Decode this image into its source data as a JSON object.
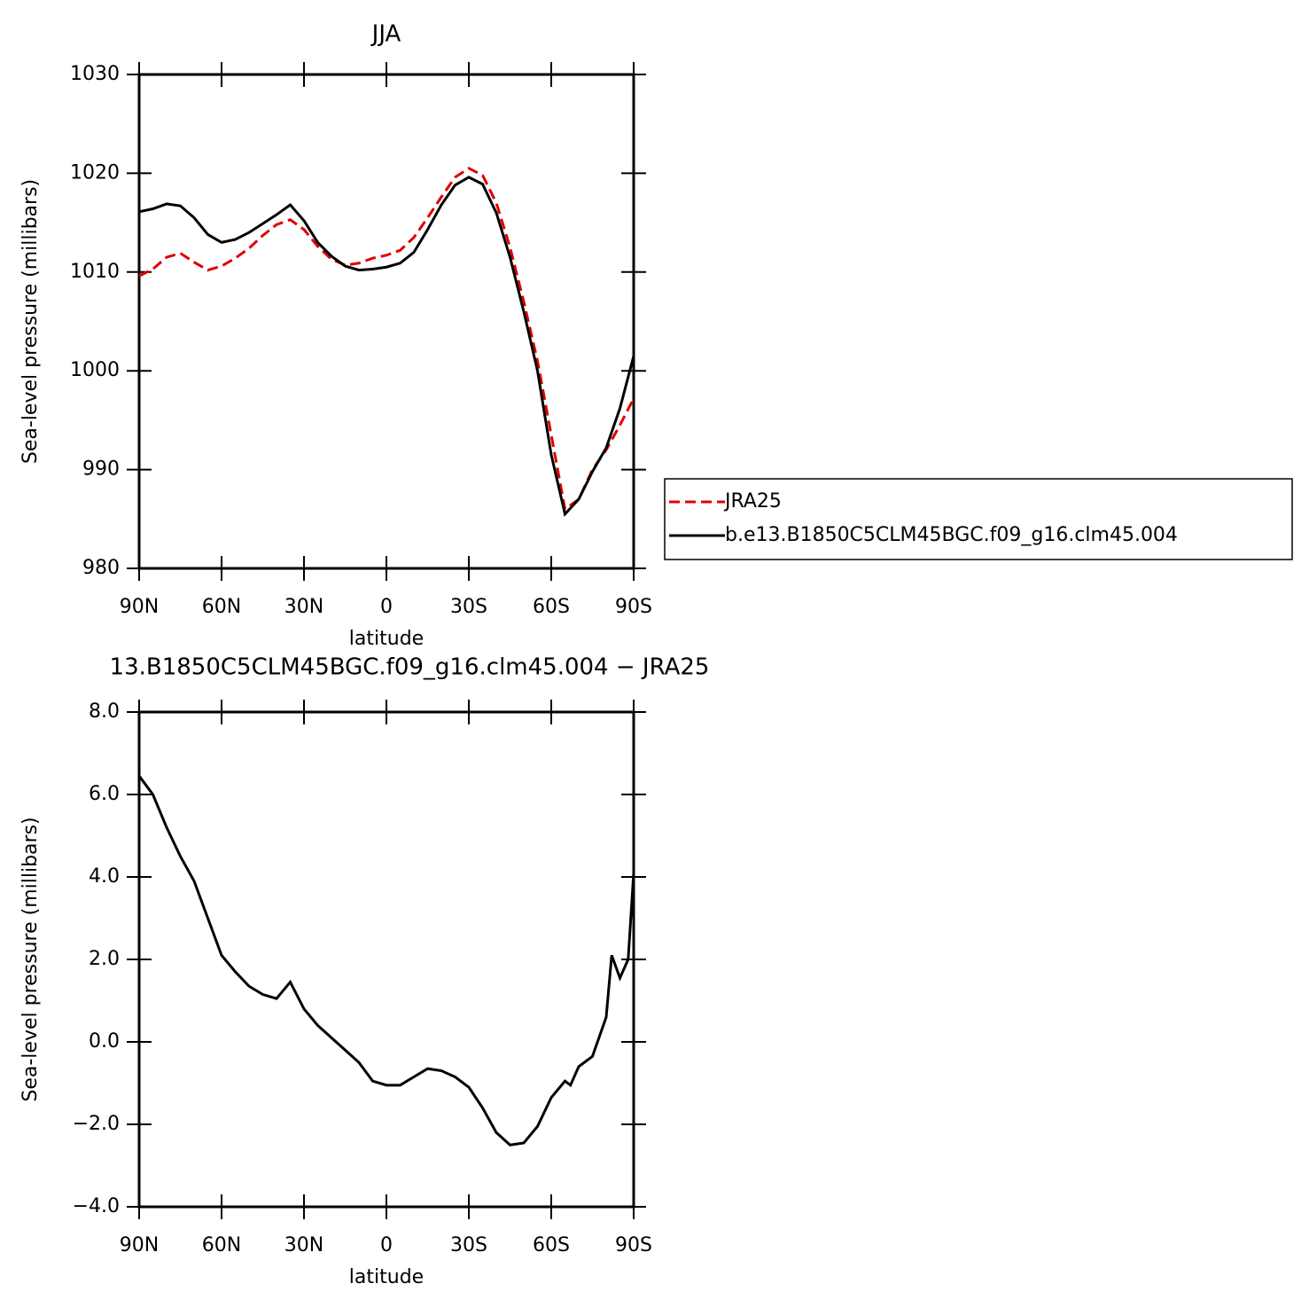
{
  "chart_data": [
    {
      "type": "line",
      "title": "JJA",
      "ylabel": "Sea-level pressure (millibars)",
      "xlabel": "latitude",
      "x": [
        90,
        85,
        80,
        75,
        70,
        65,
        60,
        55,
        50,
        45,
        40,
        35,
        30,
        25,
        20,
        15,
        10,
        5,
        0,
        -5,
        -10,
        -15,
        -20,
        -25,
        -30,
        -35,
        -40,
        -45,
        -50,
        -55,
        -60,
        -65,
        -70,
        -75,
        -80,
        -85,
        -90
      ],
      "series": [
        {
          "name": "JRA25",
          "color": "#e00000",
          "dash": true,
          "values": [
            1009.6,
            1010.3,
            1011.5,
            1011.9,
            1011.0,
            1010.2,
            1010.6,
            1011.4,
            1012.4,
            1013.7,
            1014.8,
            1015.3,
            1014.3,
            1012.6,
            1011.3,
            1010.7,
            1010.9,
            1011.4,
            1011.7,
            1012.2,
            1013.5,
            1015.5,
            1017.6,
            1019.6,
            1020.5,
            1019.8,
            1017.0,
            1012.5,
            1007.0,
            1001.0,
            993.5,
            986.0,
            987.0,
            990.0,
            992.0,
            994.5,
            997.2
          ]
        },
        {
          "name": "b.e13.B1850C5CLM45BGC.f09_g16.clm45.004",
          "color": "#000000",
          "dash": false,
          "values": [
            1016.1,
            1016.4,
            1016.9,
            1016.7,
            1015.5,
            1013.8,
            1013.0,
            1013.3,
            1014.0,
            1014.9,
            1015.8,
            1016.8,
            1015.2,
            1013.0,
            1011.6,
            1010.6,
            1010.2,
            1010.3,
            1010.5,
            1010.9,
            1012.0,
            1014.3,
            1016.8,
            1018.8,
            1019.6,
            1018.9,
            1016.0,
            1011.5,
            1006.0,
            1000.0,
            991.5,
            985.5,
            987.0,
            989.8,
            992.2,
            996.2,
            1001.5
          ]
        }
      ],
      "xlim": [
        90,
        -90
      ],
      "xticks": [
        {
          "value": 90,
          "label": "90N"
        },
        {
          "value": 60,
          "label": "60N"
        },
        {
          "value": 30,
          "label": "30N"
        },
        0,
        {
          "value": -30,
          "label": "30S"
        },
        {
          "value": -60,
          "label": "60S"
        },
        {
          "value": -90,
          "label": "90S"
        }
      ],
      "ylim": [
        980,
        1030
      ],
      "yticks": [
        980,
        990,
        1000,
        1010,
        1020,
        1030
      ]
    },
    {
      "type": "line",
      "title": "13.B1850C5CLM45BGC.f09_g16.clm45.004 − JRA25",
      "ylabel": "Sea-level pressure (millibars)",
      "xlabel": "latitude",
      "x": [
        90,
        85,
        80,
        75,
        70,
        65,
        60,
        55,
        50,
        45,
        40,
        35,
        30,
        25,
        20,
        15,
        10,
        5,
        0,
        -5,
        -10,
        -15,
        -20,
        -25,
        -30,
        -35,
        -40,
        -45,
        -50,
        -55,
        -60,
        -65,
        -67,
        -70,
        -75,
        -80,
        -82,
        -85,
        -88,
        -90
      ],
      "series": [
        {
          "color": "#000000",
          "dash": false,
          "values": [
            6.45,
            6.0,
            5.2,
            4.5,
            3.9,
            3.0,
            2.1,
            1.7,
            1.35,
            1.15,
            1.05,
            1.45,
            0.8,
            0.4,
            0.1,
            -0.2,
            -0.5,
            -0.95,
            -1.05,
            -1.05,
            -0.85,
            -0.65,
            -0.7,
            -0.85,
            -1.1,
            -1.6,
            -2.2,
            -2.5,
            -2.45,
            -2.05,
            -1.35,
            -0.95,
            -1.05,
            -0.6,
            -0.35,
            0.6,
            2.1,
            1.55,
            2.0,
            4.1
          ]
        }
      ],
      "xlim": [
        90,
        -90
      ],
      "xticks": [
        {
          "value": 90,
          "label": "90N"
        },
        {
          "value": 60,
          "label": "60N"
        },
        {
          "value": 30,
          "label": "30N"
        },
        0,
        {
          "value": -30,
          "label": "30S"
        },
        {
          "value": -60,
          "label": "60S"
        },
        {
          "value": -90,
          "label": "90S"
        }
      ],
      "ylim": [
        -4,
        8
      ],
      "yticks": [
        {
          "value": -4,
          "label": "−4.0"
        },
        {
          "value": -2,
          "label": "−2.0"
        },
        {
          "value": 0,
          "label": "0.0"
        },
        {
          "value": 2,
          "label": "2.0"
        },
        {
          "value": 4,
          "label": "4.0"
        },
        {
          "value": 6,
          "label": "6.0"
        },
        {
          "value": 8,
          "label": "8.0"
        }
      ]
    }
  ]
}
